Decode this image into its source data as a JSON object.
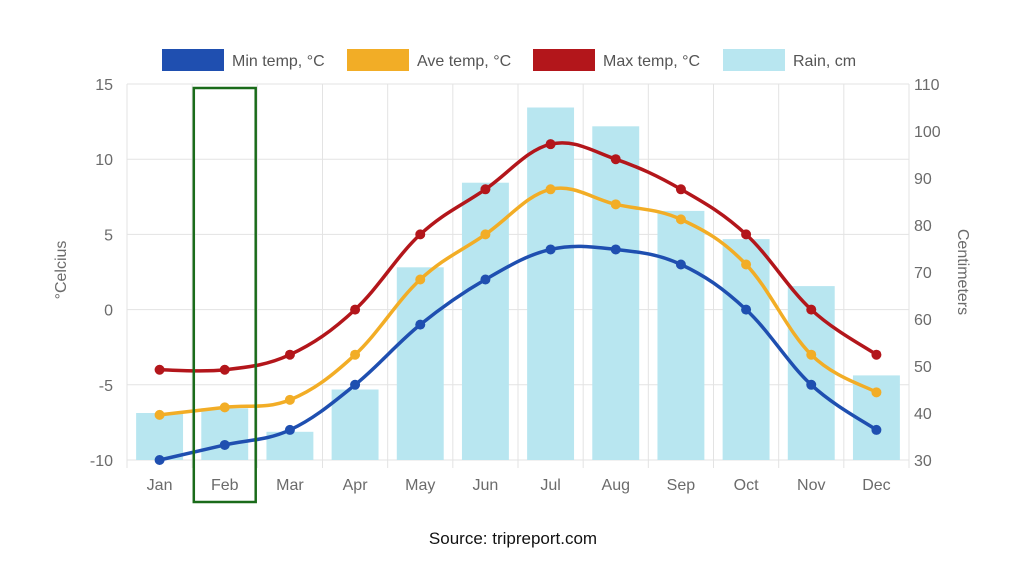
{
  "chart_data": {
    "type": "line",
    "categories": [
      "Jan",
      "Feb",
      "Mar",
      "Apr",
      "May",
      "Jun",
      "Jul",
      "Aug",
      "Sep",
      "Oct",
      "Nov",
      "Dec"
    ],
    "series": [
      {
        "name": "Min temp, °C",
        "type": "line",
        "axis": "left",
        "color": "#1f4fb0",
        "values": [
          -10,
          -9,
          -8,
          -5,
          -1,
          2,
          4,
          4,
          3,
          0,
          -5,
          -8
        ]
      },
      {
        "name": "Ave temp, °C",
        "type": "line",
        "axis": "left",
        "color": "#f2ad26",
        "values": [
          -7,
          -6.5,
          -6,
          -3,
          2,
          5,
          8,
          7,
          6,
          3,
          -3,
          -5.5
        ]
      },
      {
        "name": "Max temp, °C",
        "type": "line",
        "axis": "left",
        "color": "#b3161b",
        "values": [
          -4,
          -4,
          -3,
          0,
          5,
          8,
          11,
          10,
          8,
          5,
          0,
          -3
        ]
      },
      {
        "name": "Rain, cm",
        "type": "bar",
        "axis": "right",
        "color": "#b8e6f0",
        "values": [
          40,
          41,
          36,
          45,
          71,
          89,
          105,
          101,
          83,
          77,
          67,
          48
        ]
      }
    ],
    "y_left": {
      "label": "°Celcius",
      "min": -10,
      "max": 15,
      "ticks": [
        15,
        10,
        5,
        0,
        -5,
        -10
      ]
    },
    "y_right": {
      "label": "Centimeters",
      "min": 30,
      "max": 110,
      "ticks": [
        110,
        100,
        90,
        80,
        70,
        60,
        50,
        40,
        30
      ]
    },
    "grid": true,
    "legend_position": "top",
    "highlight": {
      "category": "Feb",
      "color": "#1a6b1a"
    },
    "source": "Source: tripreport.com"
  }
}
